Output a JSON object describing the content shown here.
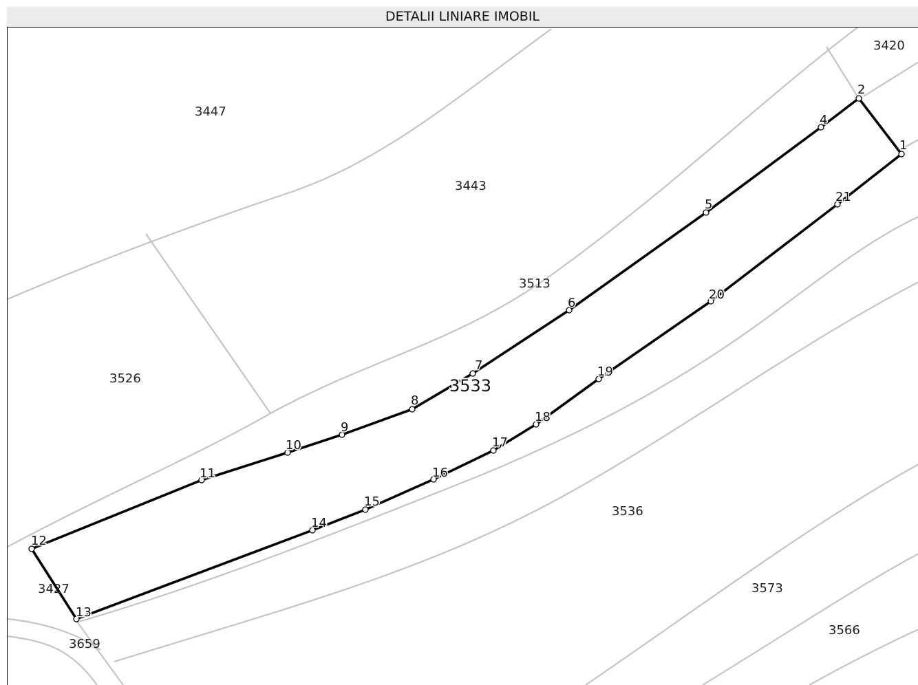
{
  "title": "DETALII LINIARE IMOBIL",
  "main_parcel": "3533",
  "parcels": [
    "3420",
    "3447",
    "3443",
    "3513",
    "3526",
    "3427",
    "3659",
    "3536",
    "3573",
    "3566"
  ],
  "boundary_vertices": [
    "1",
    "2",
    "4",
    "5",
    "6",
    "7",
    "8",
    "9",
    "10",
    "11",
    "12",
    "13",
    "14",
    "15",
    "16",
    "17",
    "18",
    "19",
    "20",
    "21"
  ],
  "colors": {
    "boundary": "#000000",
    "parcel_lines": "#c4c4c4",
    "header_bg": "#ebebeb"
  }
}
